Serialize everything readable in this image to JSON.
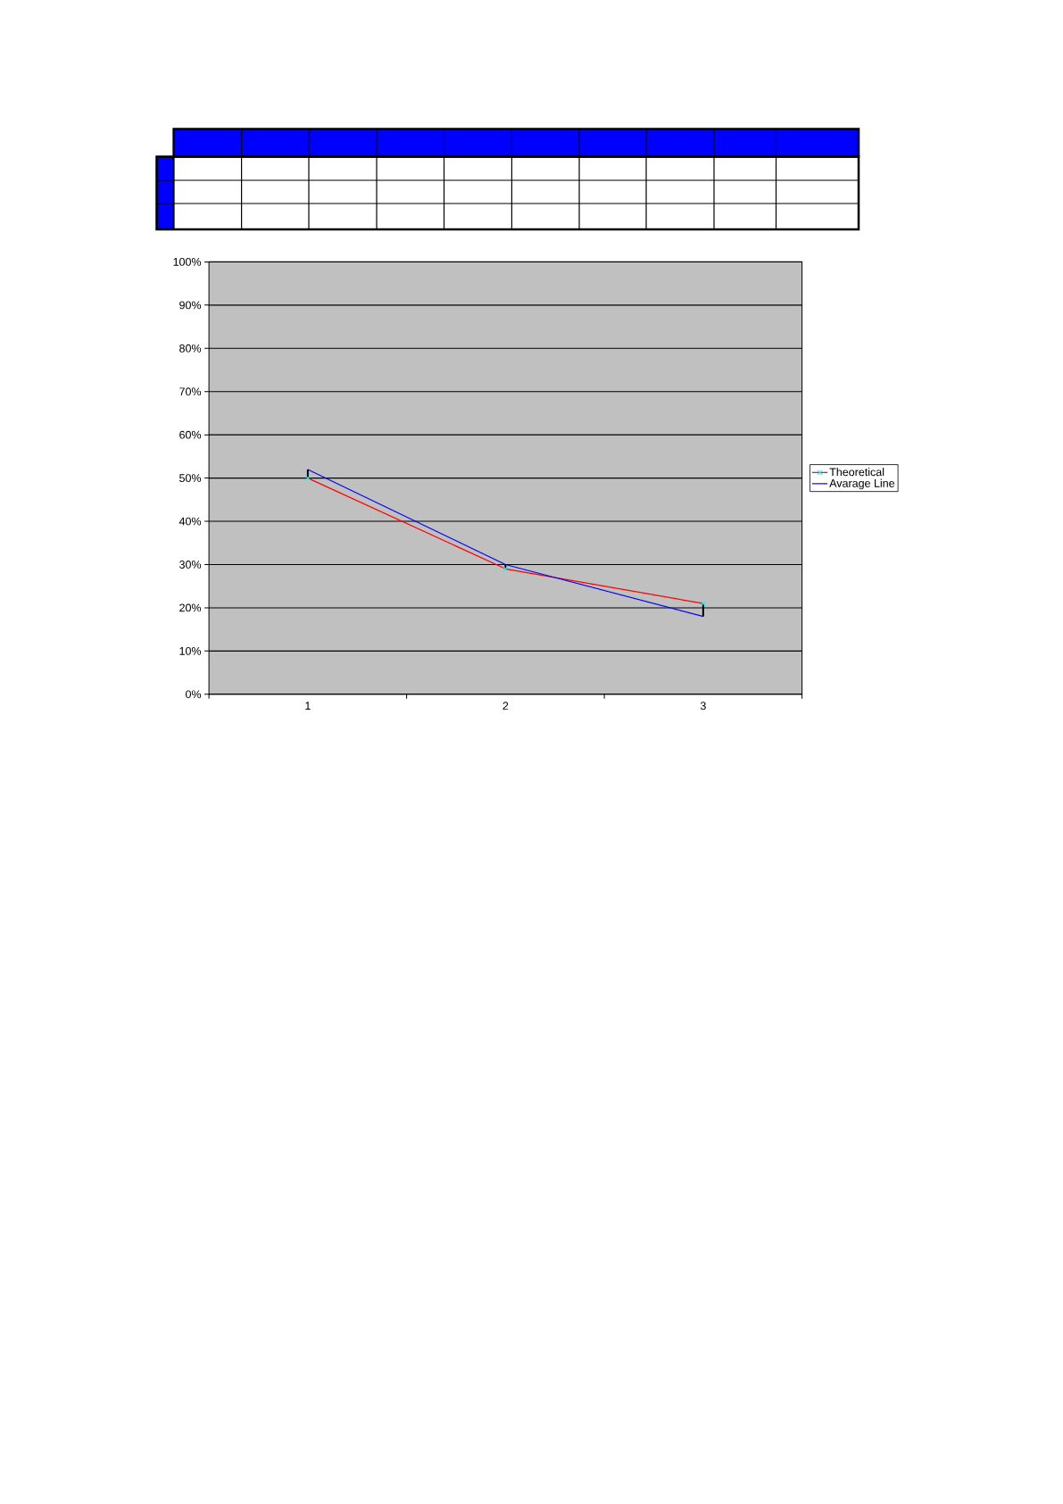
{
  "chart_data": {
    "type": "line",
    "categories": [
      "1",
      "2",
      "3"
    ],
    "series": [
      {
        "name": "Theoretical",
        "color": "#ff0000",
        "values": [
          50,
          29,
          21
        ],
        "marker": "cross",
        "colors": [
          "#00ffff",
          "#00ffff",
          "#00ffff"
        ]
      },
      {
        "name": "Avarage Line",
        "color": "#0000ff",
        "values": [
          52,
          30,
          18
        ],
        "errors": [
          [
            50,
            52
          ],
          [
            29,
            30
          ],
          [
            18,
            21
          ]
        ]
      }
    ],
    "ylim": [
      0,
      100
    ],
    "yticks": [
      {
        "value": 0,
        "label": "0%"
      },
      {
        "value": 10,
        "label": "10%"
      },
      {
        "value": 20,
        "label": "20%"
      },
      {
        "value": 30,
        "label": "30%"
      },
      {
        "value": 40,
        "label": "40%"
      },
      {
        "value": 50,
        "label": "50%"
      },
      {
        "value": 60,
        "label": "60%"
      },
      {
        "value": 70,
        "label": "70%"
      },
      {
        "value": 80,
        "label": "80%"
      },
      {
        "value": 90,
        "label": "90%"
      },
      {
        "value": 100,
        "label": "100%"
      }
    ],
    "grid": "y",
    "legend": "right"
  }
}
